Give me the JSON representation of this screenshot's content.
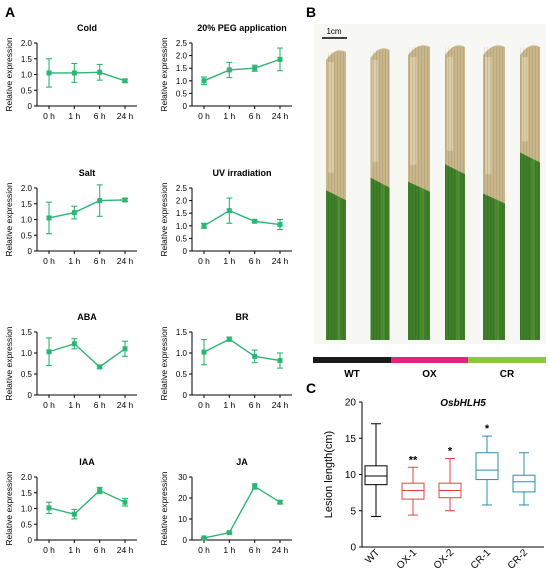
{
  "panels": {
    "a": {
      "letter": "A"
    },
    "b": {
      "letter": "B",
      "scale_bar": "1cm",
      "groups": [
        {
          "label": "WT",
          "color": "#1a1a1a"
        },
        {
          "label": "OX",
          "color": "#e3237e"
        },
        {
          "label": "CR",
          "color": "#8cc63f"
        }
      ]
    },
    "c": {
      "letter": "C"
    }
  },
  "colors": {
    "line": "#2bb673",
    "wt_box": "#000000",
    "ox_box": "#e8413c",
    "cr_box": "#2b8fa9"
  },
  "chart_data": [
    {
      "type": "line",
      "title": "Cold",
      "ylabel": "Relative expression",
      "categories": [
        "0 h",
        "1 h",
        "6 h",
        "24 h"
      ],
      "values": [
        1.05,
        1.05,
        1.07,
        0.8
      ],
      "errors": [
        0.45,
        0.3,
        0.25,
        0.05
      ],
      "ylim": [
        0,
        2.0
      ],
      "yticks": [
        "0",
        "0.5",
        "1.0",
        "1.5",
        "2.0"
      ]
    },
    {
      "type": "line",
      "title": "20% PEG application",
      "ylabel": "Relative expression",
      "categories": [
        "0 h",
        "1 h",
        "6 h",
        "24 h"
      ],
      "values": [
        1.0,
        1.43,
        1.5,
        1.85
      ],
      "errors": [
        0.15,
        0.3,
        0.12,
        0.45
      ],
      "ylim": [
        0,
        2.5
      ],
      "yticks": [
        "0",
        "0.5",
        "1.0",
        "1.5",
        "2.0",
        "2.5"
      ]
    },
    {
      "type": "line",
      "title": "Salt",
      "ylabel": "Relative expression",
      "categories": [
        "0 h",
        "1 h",
        "6 h",
        "24 h"
      ],
      "values": [
        1.05,
        1.22,
        1.6,
        1.62
      ],
      "errors": [
        0.5,
        0.2,
        0.5,
        0.05
      ],
      "ylim": [
        0,
        2.0
      ],
      "yticks": [
        "0",
        "0.5",
        "1.0",
        "1.5",
        "2.0"
      ]
    },
    {
      "type": "line",
      "title": "UV irradiation",
      "ylabel": "Relative expression",
      "categories": [
        "0 h",
        "1 h",
        "6 h",
        "24 h"
      ],
      "values": [
        1.0,
        1.6,
        1.18,
        1.05
      ],
      "errors": [
        0.1,
        0.5,
        0.04,
        0.2
      ],
      "ylim": [
        0,
        2.5
      ],
      "yticks": [
        "0",
        "0.5",
        "1.0",
        "1.5",
        "2.0",
        "2.5"
      ]
    },
    {
      "type": "line",
      "title": "ABA",
      "ylabel": "Relative expression",
      "categories": [
        "0 h",
        "1 h",
        "6 h",
        "24 h"
      ],
      "values": [
        1.03,
        1.22,
        0.67,
        1.1
      ],
      "errors": [
        0.33,
        0.12,
        0.03,
        0.18
      ],
      "ylim": [
        0,
        1.5
      ],
      "yticks": [
        "0",
        "0.5",
        "1.0",
        "1.5"
      ]
    },
    {
      "type": "line",
      "title": "BR",
      "ylabel": "Relative expression",
      "categories": [
        "0 h",
        "1 h",
        "6 h",
        "24 h"
      ],
      "values": [
        1.02,
        1.33,
        0.92,
        0.82
      ],
      "errors": [
        0.3,
        0.05,
        0.15,
        0.18
      ],
      "ylim": [
        0,
        1.5
      ],
      "yticks": [
        "0",
        "0.5",
        "1.0",
        "1.5"
      ]
    },
    {
      "type": "line",
      "title": "IAA",
      "ylabel": "Relative expression",
      "categories": [
        "0 h",
        "1 h",
        "6 h",
        "24 h"
      ],
      "values": [
        1.02,
        0.82,
        1.57,
        1.2
      ],
      "errors": [
        0.18,
        0.15,
        0.1,
        0.12
      ],
      "ylim": [
        0,
        2.0
      ],
      "yticks": [
        "0",
        "0.5",
        "1.0",
        "1.5",
        "2.0"
      ]
    },
    {
      "type": "line",
      "title": "JA",
      "ylabel": "Relative expression",
      "categories": [
        "0 h",
        "1 h",
        "6 h",
        "24 h"
      ],
      "values": [
        1.0,
        3.5,
        25.5,
        18.0
      ],
      "errors": [
        0.3,
        0.4,
        1.3,
        0.8
      ],
      "ylim": [
        0,
        30
      ],
      "yticks": [
        "0",
        "10",
        "20",
        "30"
      ]
    },
    {
      "type": "box",
      "title": "OsbHLH5",
      "ylabel": "Lesion length(cm)",
      "categories": [
        "WT",
        "OX-1",
        "OX-2",
        "CR-1",
        "CR-2"
      ],
      "significance": [
        "",
        "**",
        "*",
        "*",
        ""
      ],
      "series": [
        {
          "min": 4.2,
          "q1": 8.6,
          "median": 9.8,
          "q3": 11.2,
          "max": 17.0
        },
        {
          "min": 4.4,
          "q1": 6.6,
          "median": 7.8,
          "q3": 8.8,
          "max": 11.0
        },
        {
          "min": 5.0,
          "q1": 6.8,
          "median": 7.8,
          "q3": 8.8,
          "max": 12.2
        },
        {
          "min": 5.8,
          "q1": 9.3,
          "median": 10.6,
          "q3": 13.0,
          "max": 15.3
        },
        {
          "min": 5.8,
          "q1": 7.6,
          "median": 9.0,
          "q3": 9.9,
          "max": 13.0
        }
      ],
      "ylim": [
        0,
        20
      ],
      "yticks": [
        "0",
        "5",
        "10",
        "15",
        "20"
      ]
    }
  ]
}
